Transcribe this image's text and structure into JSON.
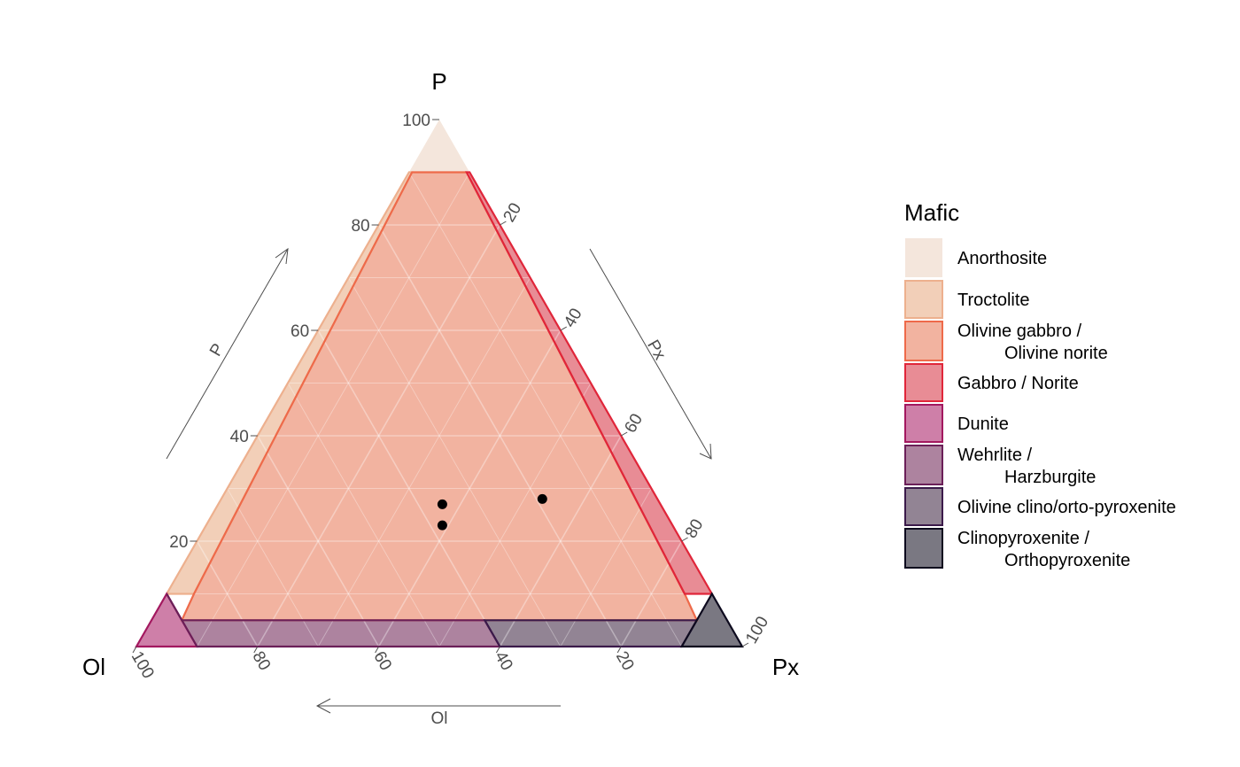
{
  "chart_data": {
    "type": "ternary",
    "vertices": {
      "top": "P",
      "left": "Ol",
      "right": "Px"
    },
    "axes": {
      "P": {
        "label": "P",
        "ticks": [
          20,
          40,
          60,
          80,
          100
        ]
      },
      "Px": {
        "label": "Px",
        "ticks": [
          20,
          40,
          60,
          80,
          100
        ]
      },
      "Ol": {
        "label": "Ol",
        "ticks": [
          100,
          80,
          60,
          40,
          20
        ]
      }
    },
    "grid": true,
    "legend": {
      "title": "Mafic",
      "position": "right",
      "items": [
        {
          "lines": [
            "Anorthosite"
          ],
          "fill": "#F4E6DC",
          "stroke": "#F4E6DC"
        },
        {
          "lines": [
            "Troctolite"
          ],
          "fill": "#F2CFB8",
          "stroke": "#EDB08E"
        },
        {
          "lines": [
            "Olivine gabbro /",
            "Olivine norite"
          ],
          "fill": "#F2B3A0",
          "stroke": "#EE6A4A"
        },
        {
          "lines": [
            "Gabbro / Norite"
          ],
          "fill": "#E88C95",
          "stroke": "#E0263A"
        },
        {
          "lines": [
            "Dunite"
          ],
          "fill": "#CE7FA8",
          "stroke": "#A3185F"
        },
        {
          "lines": [
            "Wehrlite /",
            "Harzburgite"
          ],
          "fill": "#AD839F",
          "stroke": "#6B1F58"
        },
        {
          "lines": [
            "Olivine clino/orto-pyroxenite"
          ],
          "fill": "#928494",
          "stroke": "#3B1A4A"
        },
        {
          "lines": [
            "Clinopyroxenite /",
            "Orthopyroxenite"
          ],
          "fill": "#7A7882",
          "stroke": "#0D0A1E"
        }
      ]
    },
    "regions": [
      {
        "name": "Anorthosite",
        "points": [
          [
            100,
            0,
            0
          ],
          [
            90,
            10,
            0
          ],
          [
            90,
            0,
            10
          ]
        ]
      },
      {
        "name": "Troctolite",
        "points": [
          [
            90,
            10,
            0
          ],
          [
            10,
            90,
            0
          ],
          [
            10,
            85.5,
            4.5
          ],
          [
            90,
            9.5,
            0.5
          ]
        ]
      },
      {
        "name": "Olivine gabbro / Olivine norite",
        "points": [
          [
            90,
            9.5,
            0.5
          ],
          [
            10,
            85.5,
            4.5
          ],
          [
            5,
            90,
            5
          ],
          [
            5,
            5,
            90
          ],
          [
            10,
            4.5,
            85.5
          ],
          [
            90,
            0.5,
            9.5
          ]
        ]
      },
      {
        "name": "Gabbro / Norite",
        "points": [
          [
            90,
            0.5,
            9.5
          ],
          [
            10,
            4.5,
            85.5
          ],
          [
            10,
            0,
            90
          ],
          [
            90,
            0,
            10
          ]
        ]
      },
      {
        "name": "Dunite",
        "points": [
          [
            0,
            100,
            0
          ],
          [
            10,
            90,
            0
          ],
          [
            0,
            90,
            10
          ]
        ]
      },
      {
        "name": "Wehrlite / Harzburgite",
        "points": [
          [
            0,
            90,
            10
          ],
          [
            10,
            90,
            0
          ],
          [
            5,
            90,
            5
          ],
          [
            5,
            40,
            55
          ],
          [
            0,
            40,
            60
          ]
        ]
      },
      {
        "name": "Olivine clino/orto-pyroxenite",
        "points": [
          [
            0,
            40,
            60
          ],
          [
            5,
            40,
            55
          ],
          [
            5,
            5,
            90
          ],
          [
            0,
            10,
            90
          ]
        ]
      },
      {
        "name": "Clinopyroxenite / Orthopyroxenite",
        "points": [
          [
            0,
            10,
            90
          ],
          [
            5,
            5,
            90
          ],
          [
            10,
            0,
            90
          ],
          [
            0,
            0,
            100
          ]
        ]
      }
    ],
    "points": [
      {
        "P": 27,
        "Ol": 36,
        "Px": 37
      },
      {
        "P": 23,
        "Ol": 38,
        "Px": 39
      },
      {
        "P": 28,
        "Ol": 19,
        "Px": 53
      }
    ]
  }
}
